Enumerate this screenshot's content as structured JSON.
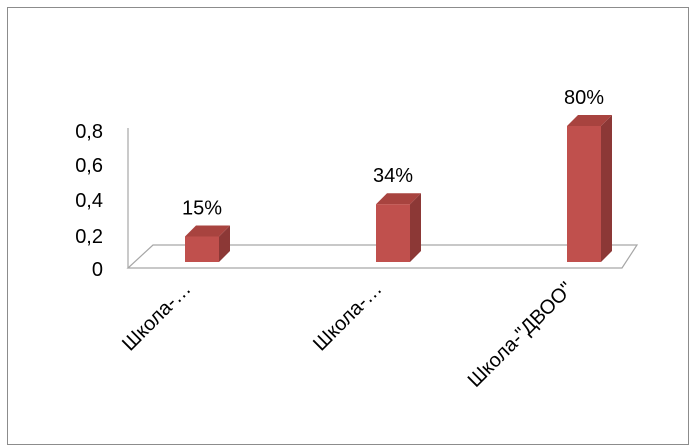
{
  "chart_data": {
    "type": "bar",
    "categories": [
      "Школа-…",
      "Школа-…",
      "Школа-\"ДВОО\""
    ],
    "values": [
      0.15,
      0.34,
      0.8
    ],
    "data_labels": [
      "15%",
      "34%",
      "80%"
    ],
    "y_ticks": [
      "0",
      "0,2",
      "0,4",
      "0,6",
      "0,8"
    ],
    "ylim": [
      0,
      0.8
    ],
    "grid": false,
    "legend": "none",
    "colors": {
      "bar_front": "#c0504d",
      "bar_side": "#8c3836",
      "bar_top": "#a8433f",
      "floor": "#a6a6a6",
      "axis": "#a6a6a6"
    }
  }
}
